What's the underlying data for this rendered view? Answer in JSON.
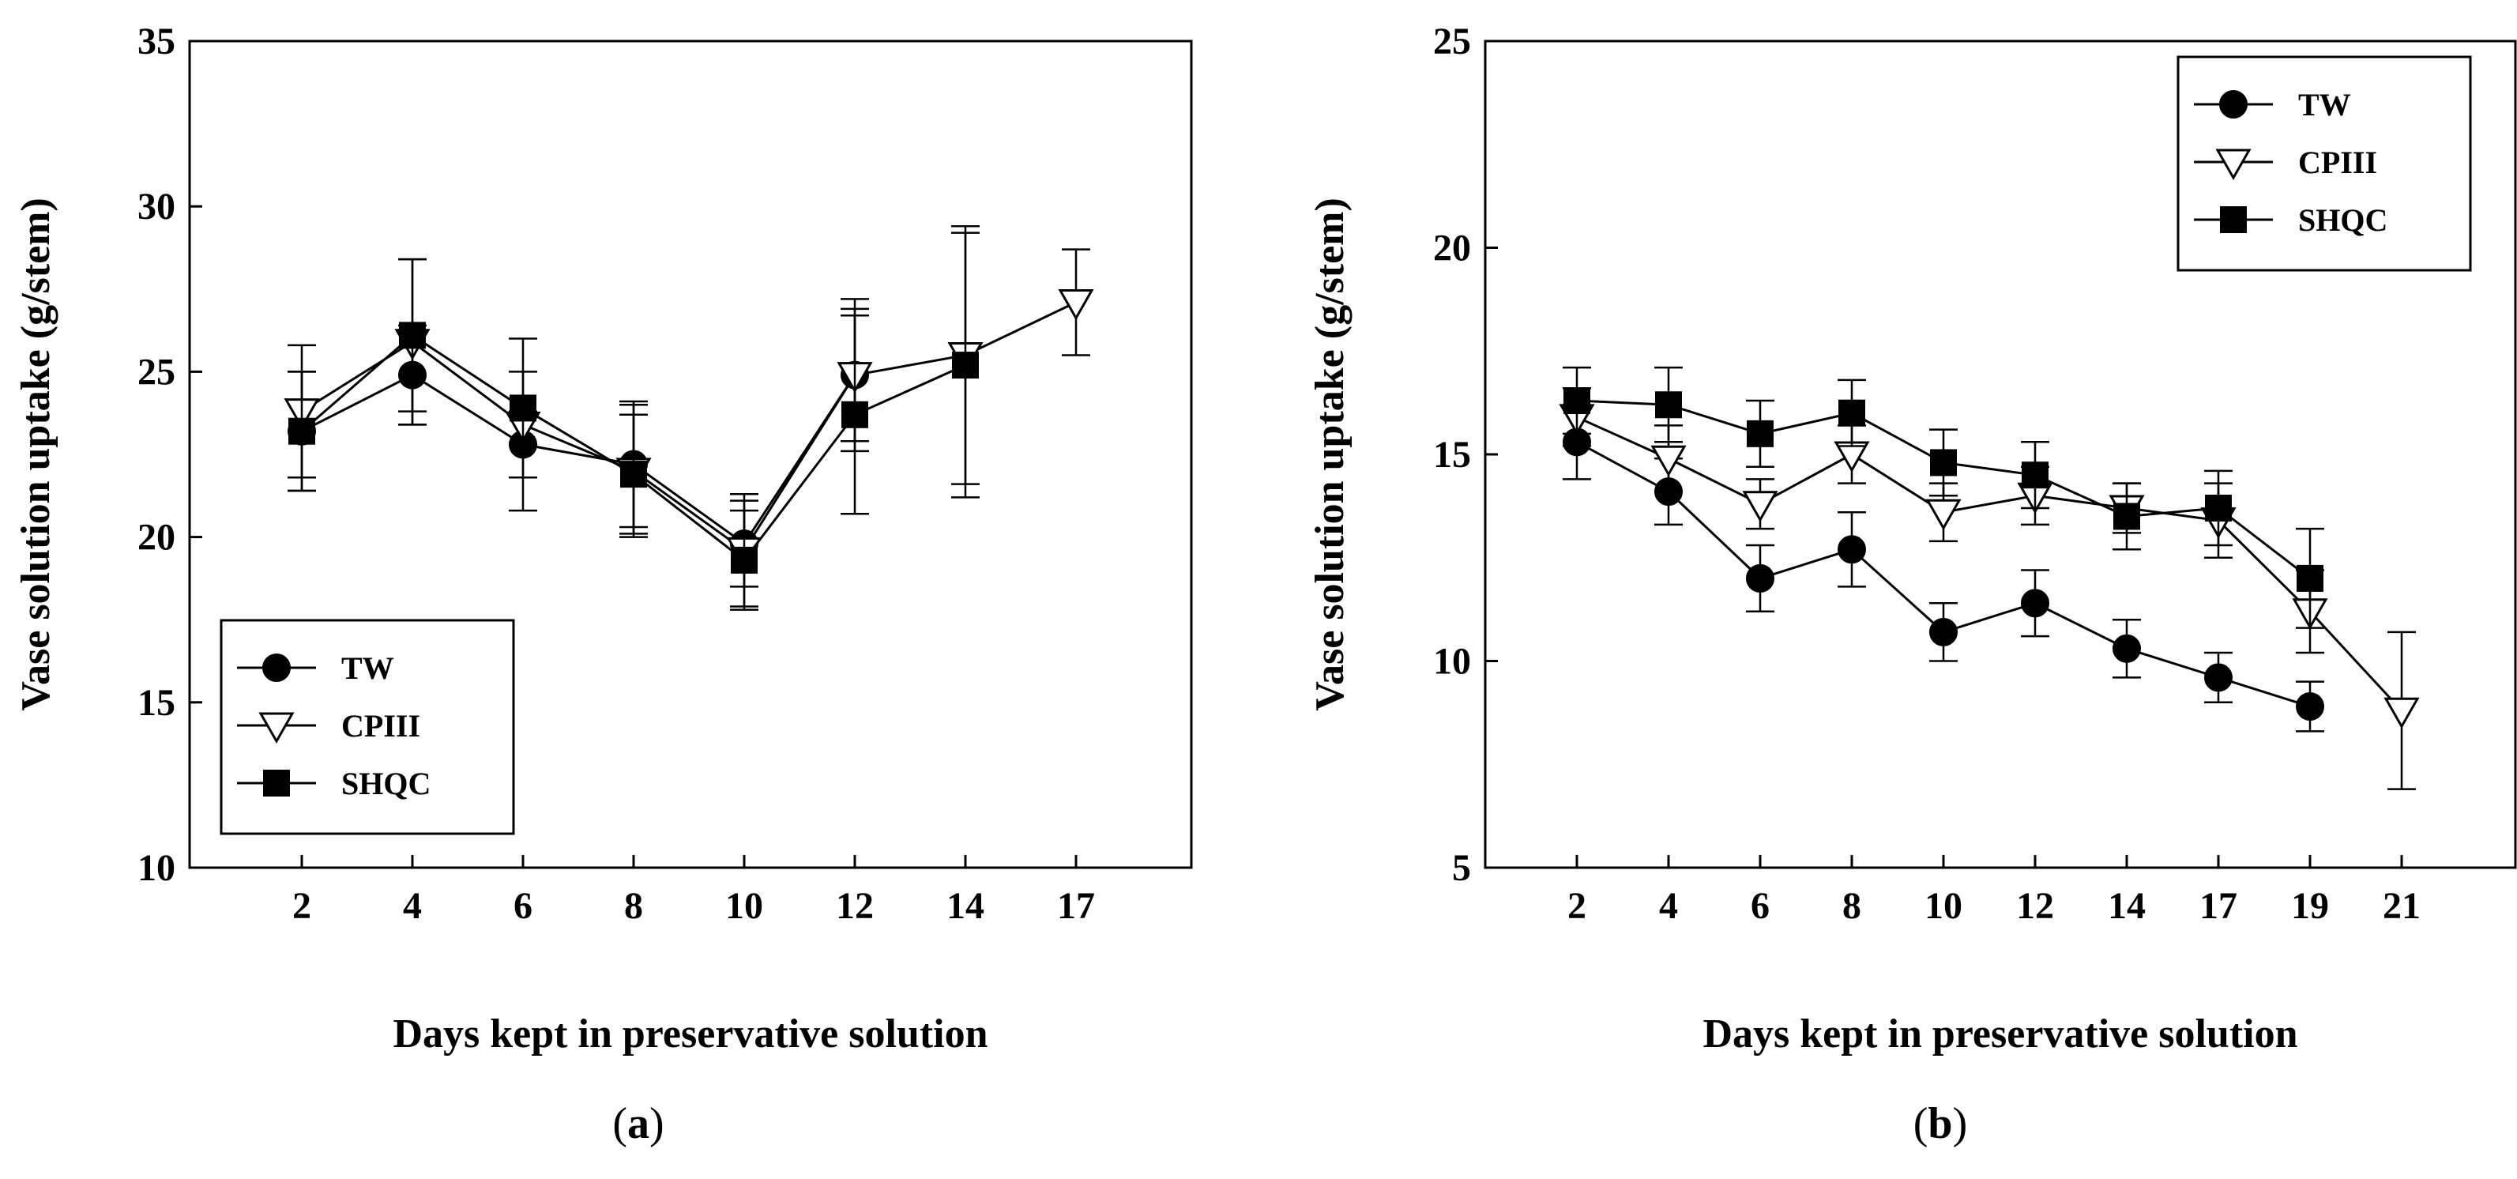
{
  "figure": {
    "panels": [
      {
        "caption_open": "(",
        "caption_letter": "a",
        "caption_close": ")"
      },
      {
        "caption_open": "(",
        "caption_letter": "b",
        "caption_close": ")"
      }
    ]
  },
  "chart_data": [
    {
      "type": "line",
      "xlabel": "Days kept in preservative solution",
      "ylabel": "Vase solution uptake (g/stem)",
      "ylim": [
        10,
        35
      ],
      "yticks": [
        10,
        15,
        20,
        25,
        30,
        35
      ],
      "categories": [
        "2",
        "4",
        "6",
        "8",
        "10",
        "12",
        "14",
        "17"
      ],
      "legend_position": "bottom-left",
      "grid": false,
      "series": [
        {
          "name": "TW",
          "marker": "filled-circle",
          "values": [
            23.2,
            24.9,
            22.8,
            22.2,
            19.8,
            24.9,
            null,
            null
          ],
          "errors": [
            1.8,
            1.5,
            1.0,
            1.9,
            1.3,
            2.0,
            null,
            null
          ]
        },
        {
          "name": "CPIII",
          "marker": "open-triangle-down",
          "values": [
            23.8,
            25.9,
            23.4,
            22.0,
            19.6,
            24.9,
            25.5,
            27.1
          ],
          "errors": [
            2.0,
            2.5,
            2.6,
            2.0,
            1.7,
            2.3,
            3.9,
            1.6
          ]
        },
        {
          "name": "SHQC",
          "marker": "filled-square",
          "values": [
            23.2,
            26.1,
            23.9,
            21.9,
            19.3,
            23.7,
            25.2,
            null
          ],
          "errors": [
            1.8,
            2.3,
            1.1,
            1.8,
            1.5,
            3.0,
            4.0,
            null
          ]
        }
      ]
    },
    {
      "type": "line",
      "xlabel": "Days kept in preservative solution",
      "ylabel": "Vase solution uptake (g/stem)",
      "ylim": [
        5,
        25
      ],
      "yticks": [
        5,
        10,
        15,
        20,
        25
      ],
      "categories": [
        "2",
        "4",
        "6",
        "8",
        "10",
        "12",
        "14",
        "17",
        "19",
        "21"
      ],
      "legend_position": "top-right",
      "grid": false,
      "series": [
        {
          "name": "TW",
          "marker": "filled-circle",
          "values": [
            15.3,
            14.1,
            12.0,
            12.7,
            10.7,
            11.4,
            10.3,
            9.6,
            8.9,
            null
          ],
          "errors": [
            0.9,
            0.8,
            0.8,
            0.9,
            0.7,
            0.8,
            0.7,
            0.6,
            0.6,
            null
          ]
        },
        {
          "name": "CPIII",
          "marker": "open-triangle-down",
          "values": [
            15.9,
            14.9,
            13.8,
            15.0,
            13.6,
            14.0,
            13.7,
            13.4,
            11.2,
            8.8
          ],
          "errors": [
            0.7,
            0.8,
            0.6,
            0.7,
            0.7,
            0.7,
            0.6,
            0.9,
            1.0,
            1.9
          ]
        },
        {
          "name": "SHQC",
          "marker": "filled-square",
          "values": [
            16.3,
            16.2,
            15.5,
            16.0,
            14.8,
            14.5,
            13.5,
            13.7,
            12.0,
            null
          ],
          "errors": [
            0.8,
            0.9,
            0.8,
            0.8,
            0.8,
            0.8,
            0.8,
            0.9,
            1.2,
            null
          ]
        }
      ]
    }
  ]
}
